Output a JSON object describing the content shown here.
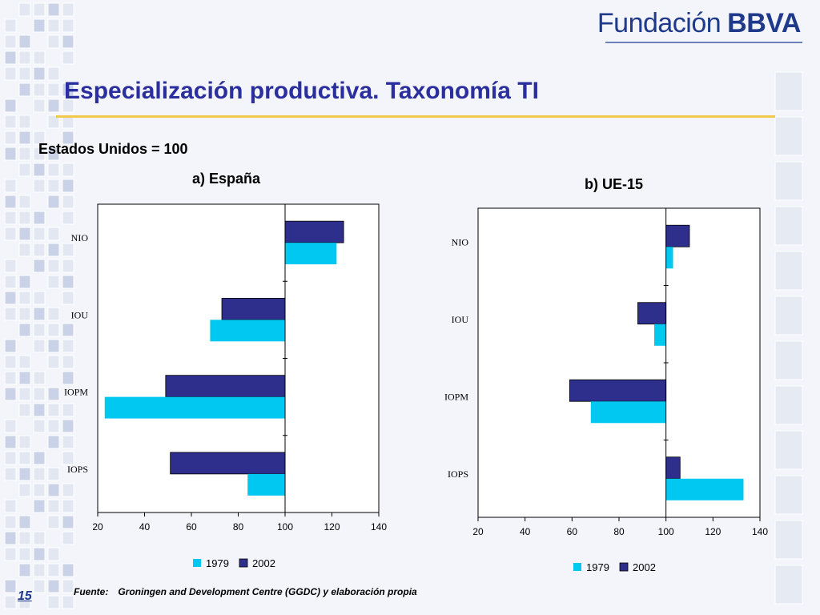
{
  "header": {
    "logo_text": "Fundación",
    "logo_brand": "BBVA",
    "title": "Especialización productiva. Taxonomía TI"
  },
  "subtitle": "Estados Unidos = 100",
  "colors": {
    "c1979": "#00c8f0",
    "c2002": "#2e2e8c",
    "title": "#2b2f9e"
  },
  "chart_data": [
    {
      "type": "bar",
      "orientation": "horizontal",
      "title": "a) España",
      "categories": [
        "NIO",
        "IOU",
        "IOPM",
        "IOPS"
      ],
      "series": [
        {
          "name": "1979",
          "values": [
            122,
            68,
            23,
            84
          ]
        },
        {
          "name": "2002",
          "values": [
            125,
            73,
            49,
            51
          ]
        }
      ],
      "xlim": [
        20,
        140
      ],
      "xticks": [
        "20",
        "40",
        "60",
        "80",
        "100",
        "120",
        "140"
      ],
      "baseline": 100,
      "legend": "bottom"
    },
    {
      "type": "bar",
      "orientation": "horizontal",
      "title": "b) UE-15",
      "categories": [
        "NIO",
        "IOU",
        "IOPM",
        "IOPS"
      ],
      "series": [
        {
          "name": "1979",
          "values": [
            103,
            95,
            68,
            133
          ]
        },
        {
          "name": "2002",
          "values": [
            110,
            88,
            59,
            106
          ]
        }
      ],
      "xlim": [
        20,
        140
      ],
      "xticks": [
        "20",
        "40",
        "60",
        "80",
        "100",
        "120",
        "140"
      ],
      "baseline": 100,
      "legend": "bottom"
    }
  ],
  "footer": {
    "source_label": "Fuente:",
    "source_text": "Groningen and Development Centre (GGDC) y elaboración propia",
    "page_number": "15"
  }
}
